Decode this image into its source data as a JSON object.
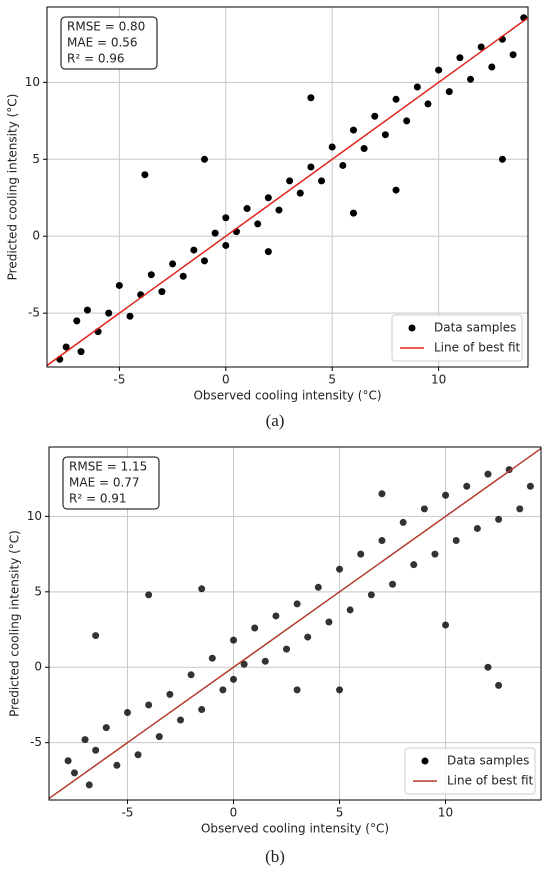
{
  "chart_data": [
    {
      "type": "scatter",
      "caption": "(a)",
      "xlabel": "Observed cooling intensity (°C)",
      "ylabel": "Predicted cooling intensity (°C)",
      "annotations": [
        "RMSE = 0.80",
        "MAE = 0.56",
        "R² = 0.96"
      ],
      "xlim": [
        -8.4,
        14.2
      ],
      "ylim": [
        -8.5,
        14.9
      ],
      "xticks": [
        -5,
        0,
        5,
        10
      ],
      "yticks": [
        -5,
        0,
        5,
        10
      ],
      "grid": true,
      "legend": "lower right",
      "series": [
        {
          "name": "Data samples",
          "color": "#000000",
          "x": [
            -7.5,
            -7,
            -6.8,
            -6.5,
            -6,
            -5.5,
            -5,
            -4.5,
            -4,
            -3.5,
            -3,
            -2.5,
            -2,
            -1.5,
            -1,
            -0.5,
            0,
            0,
            0.5,
            1,
            1.5,
            2,
            2.5,
            3,
            3.5,
            4,
            4.5,
            5,
            5.5,
            6,
            6.5,
            7,
            7.5,
            8,
            8.5,
            9,
            9.5,
            10,
            10.5,
            11,
            11.5,
            12,
            12.5,
            13,
            13.5,
            14,
            -7.8,
            4,
            2,
            8,
            13,
            -1,
            6,
            -3.8
          ],
          "values": [
            -7.2,
            -5.5,
            -7.5,
            -4.8,
            -6.2,
            -5,
            -3.2,
            -5.2,
            -3.8,
            -2.5,
            -3.6,
            -1.8,
            -2.6,
            -0.9,
            -1.6,
            0.2,
            -0.6,
            1.2,
            0.3,
            1.8,
            0.8,
            2.5,
            1.7,
            3.6,
            2.8,
            4.5,
            3.6,
            5.8,
            4.6,
            6.9,
            5.7,
            7.8,
            6.6,
            8.9,
            7.5,
            9.7,
            8.6,
            10.8,
            9.4,
            11.6,
            10.2,
            12.3,
            11,
            12.8,
            11.8,
            14.2,
            -8,
            9,
            -1,
            3,
            5,
            5,
            1.5,
            4
          ]
        },
        {
          "name": "Line of best fit",
          "color": "#e0241b",
          "x": [
            -8.4,
            14.2
          ],
          "values": [
            -8.4,
            14.2
          ]
        }
      ]
    },
    {
      "type": "scatter",
      "caption": "(b)",
      "xlabel": "Observed cooling intensity (°C)",
      "ylabel": "Predicted cooling intensity (°C)",
      "annotations": [
        "RMSE = 1.15",
        "MAE = 0.77",
        "R² = 0.91"
      ],
      "xlim": [
        -8.7,
        14.5
      ],
      "ylim": [
        -8.8,
        14.6
      ],
      "xticks": [
        -5,
        0,
        5,
        10
      ],
      "yticks": [
        -5,
        0,
        5,
        10
      ],
      "grid": true,
      "legend": "lower right",
      "series": [
        {
          "name": "Data samples",
          "color": "#000000",
          "x": [
            -7.5,
            -7,
            -6.8,
            -6.5,
            -6,
            -5.5,
            -5,
            -4.5,
            -4,
            -3.5,
            -3,
            -2.5,
            -2,
            -1.5,
            -1,
            -0.5,
            0,
            0,
            0.5,
            1,
            1.5,
            2,
            2.5,
            3,
            3.5,
            4,
            4.5,
            5,
            5.5,
            6,
            6.5,
            7,
            7.5,
            8,
            8.5,
            9,
            9.5,
            10,
            10.5,
            11,
            11.5,
            12,
            12.5,
            13,
            13.5,
            14,
            -7.8,
            12,
            12.5,
            -6.5,
            7,
            3,
            -4,
            10,
            -1.5,
            5
          ],
          "values": [
            -7,
            -4.8,
            -7.8,
            -5.5,
            -4,
            -6.5,
            -3,
            -5.8,
            -2.5,
            -4.6,
            -1.8,
            -3.5,
            -0.5,
            -2.8,
            0.6,
            -1.5,
            -0.8,
            1.8,
            0.2,
            2.6,
            0.4,
            3.4,
            1.2,
            4.2,
            2,
            5.3,
            3,
            6.5,
            3.8,
            7.5,
            4.8,
            8.4,
            5.5,
            9.6,
            6.8,
            10.5,
            7.5,
            11.4,
            8.4,
            12,
            9.2,
            12.8,
            9.8,
            13.1,
            10.5,
            12,
            -6.2,
            0,
            -1.2,
            2.1,
            11.5,
            -1.5,
            4.8,
            2.8,
            5.2,
            -1.5
          ]
        },
        {
          "name": "Line of best fit",
          "color": "#b23a2a",
          "x": [
            -8.8,
            14.6
          ],
          "values": [
            -8.8,
            14.6
          ]
        }
      ]
    }
  ]
}
